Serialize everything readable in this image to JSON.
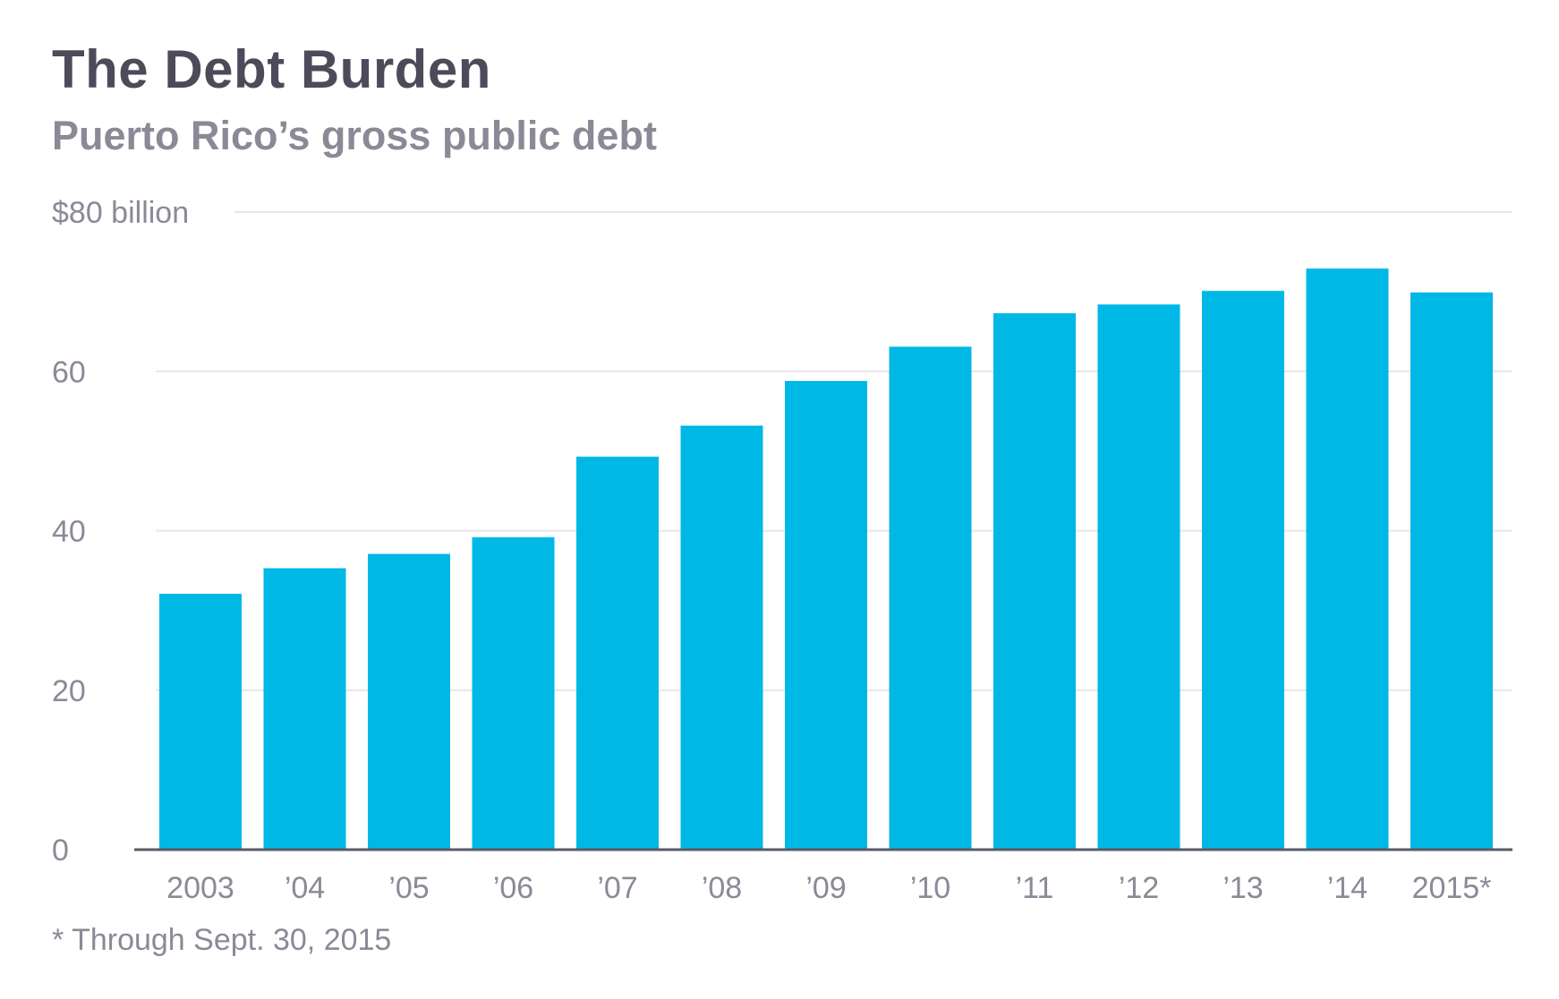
{
  "colors": {
    "bar": "#00b8e6",
    "grid": "#e6e6ea",
    "axis": "#5a5a66",
    "tick_text": "#8a8a97",
    "title": "#4b4b5a"
  },
  "chart_data": {
    "type": "bar",
    "title": "The Debt Burden",
    "subtitle": "Puerto Rico’s gross public debt",
    "footnote": "* Through Sept. 30, 2015",
    "categories": [
      "2003",
      "’04",
      "’05",
      "’06",
      "’07",
      "’08",
      "’09",
      "’10",
      "’11",
      "’12",
      "’13",
      "’14",
      "2015*"
    ],
    "values": [
      32.1,
      35.3,
      37.1,
      39.2,
      49.3,
      53.2,
      58.8,
      63.1,
      67.3,
      68.4,
      70.1,
      72.9,
      69.9
    ],
    "yticks": [
      {
        "value": 0,
        "label": "0"
      },
      {
        "value": 20,
        "label": "20"
      },
      {
        "value": 40,
        "label": "40"
      },
      {
        "value": 60,
        "label": "60"
      },
      {
        "value": 80,
        "label": "$80 billion"
      }
    ],
    "xlabel": "",
    "ylabel": "",
    "ylim": [
      0,
      80
    ],
    "grid": true,
    "legend": "none"
  }
}
